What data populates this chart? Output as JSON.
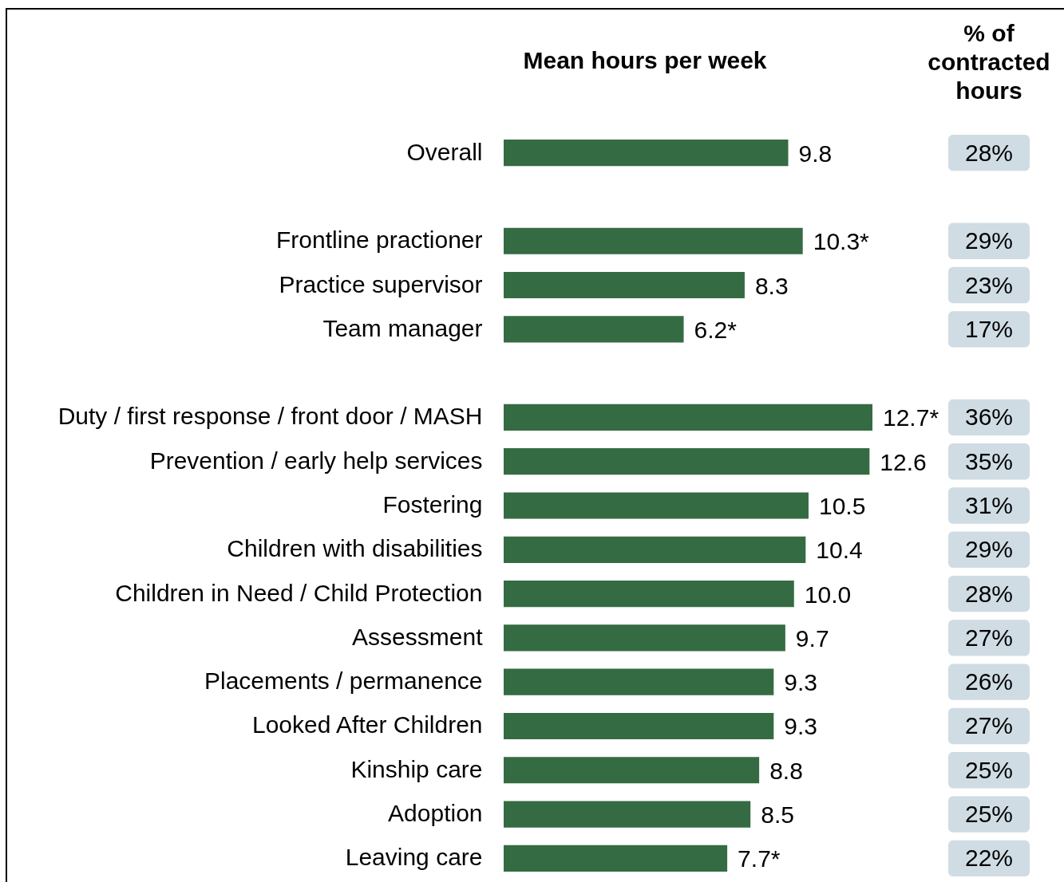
{
  "chart_data": [
    {
      "type": "bar",
      "orientation": "horizontal",
      "title": "Mean hours per week",
      "categories": [
        "Overall",
        null,
        "Frontline practioner",
        "Practice supervisor",
        "Team manager",
        null,
        "Duty / first response / front door / MASH",
        "Prevention / early help services",
        "Fostering",
        "Children with disabilities",
        "Children in Need / Child Protection",
        "Assessment",
        "Placements / permanence",
        "Looked After Children",
        "Kinship care",
        "Adoption",
        "Leaving care"
      ],
      "values": [
        9.8,
        null,
        10.3,
        8.3,
        6.2,
        null,
        12.7,
        12.6,
        10.5,
        10.4,
        10.0,
        9.7,
        9.3,
        9.3,
        8.8,
        8.5,
        7.7
      ],
      "value_labels": [
        "9.8",
        null,
        "10.3*",
        "8.3",
        "6.2*",
        null,
        "12.7*",
        "12.6",
        "10.5",
        "10.4",
        "10.0",
        "9.7",
        "9.3",
        "9.3",
        "8.8",
        "8.5",
        "7.7*"
      ],
      "color": "#356b43",
      "tick_labels": "y"
    },
    {
      "type": "other",
      "title": "% of contracted hours",
      "categories": [
        null,
        null,
        null,
        null,
        null,
        null,
        null,
        null,
        null,
        null,
        null,
        null,
        null,
        null,
        null,
        null,
        null
      ],
      "values": [
        28,
        null,
        29,
        23,
        17,
        null,
        36,
        35,
        31,
        29,
        28,
        27,
        26,
        27,
        25,
        25,
        22
      ],
      "value_labels": [
        "28%",
        null,
        "29%",
        "23%",
        "17%",
        null,
        "36%",
        "35%",
        "31%",
        "29%",
        "28%",
        "27%",
        "26%",
        "27%",
        "25%",
        "25%",
        "22%"
      ],
      "color": "#d0dce4"
    }
  ]
}
